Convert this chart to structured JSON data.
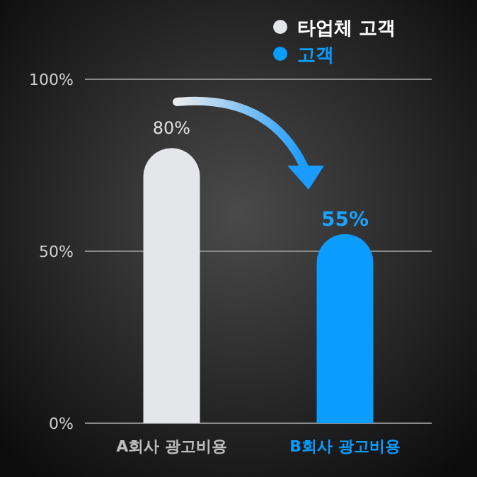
{
  "chart_data": {
    "type": "bar",
    "categories": [
      "A회사 광고비용",
      "B회사 광고비용"
    ],
    "series": [
      {
        "name": "타업체 고객",
        "color": "#e4e6ea",
        "values": [
          80,
          null
        ],
        "value_labels": [
          "80%",
          null
        ]
      },
      {
        "name": "고객",
        "color": "#0a9cff",
        "values": [
          null,
          55
        ],
        "value_labels": [
          null,
          "55%"
        ]
      }
    ],
    "ylim": [
      0,
      100
    ],
    "yticks": [
      {
        "value": 0,
        "label": "0%"
      },
      {
        "value": 50,
        "label": "50%"
      },
      {
        "value": 100,
        "label": "100%"
      }
    ],
    "grid": "y",
    "legend": "top right"
  }
}
